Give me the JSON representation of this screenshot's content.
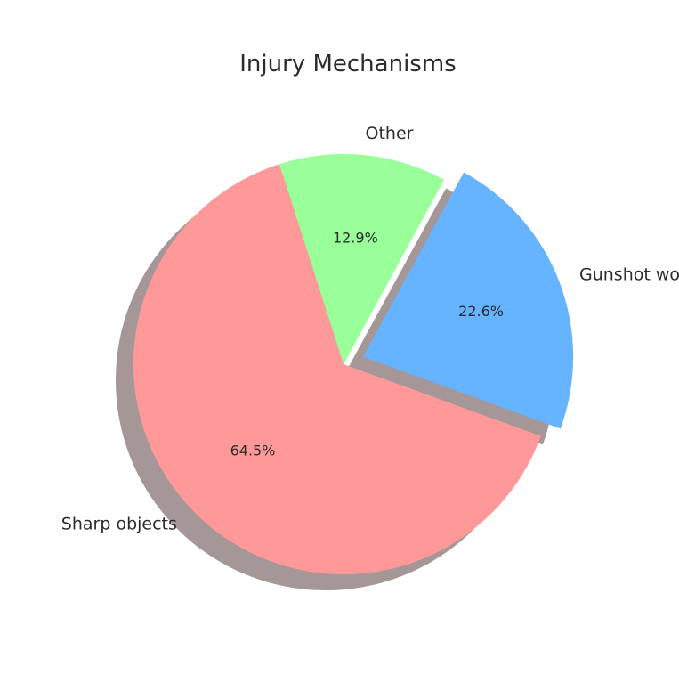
{
  "chart_data": {
    "type": "pie",
    "title": "Injury Mechanisms",
    "categories": [
      "Gunshot wounds",
      "Other",
      "Sharp objects"
    ],
    "values": [
      22.6,
      12.9,
      64.5
    ],
    "labels": [
      "22.6%",
      "12.9%",
      "64.5%"
    ],
    "colors": [
      "#66b3ff",
      "#99ff99",
      "#ff9999"
    ],
    "explode": [
      0.1,
      0,
      0
    ],
    "shadow": true,
    "legend": false
  }
}
